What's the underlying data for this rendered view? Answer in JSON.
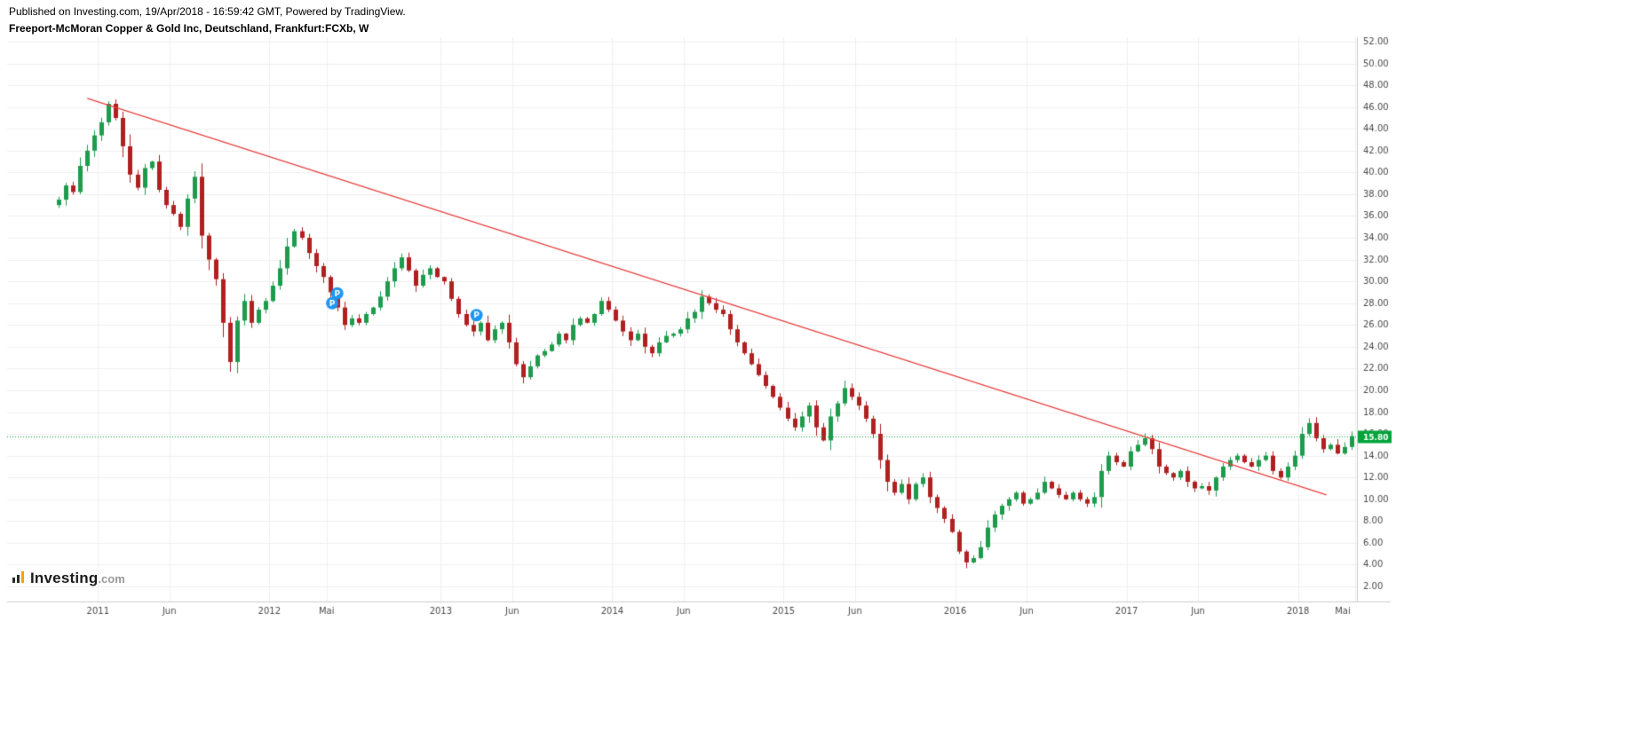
{
  "header": {
    "published_line": "Published on Investing.com, 19/Apr/2018 - 16:59:42 GMT, Powered by TradingView.",
    "instrument_line": "Freeport-McMoran Copper & Gold Inc, Deutschland, Frankfurt:FCXb, W"
  },
  "logo": {
    "name": "Investing",
    "suffix": ".com"
  },
  "chart_data": {
    "type": "candlestick",
    "title": "Freeport-McMoran Copper & Gold Inc, Deutschland, Frankfurt:FCXb, W",
    "timeframe": "W",
    "y_axis": {
      "min": 2,
      "max": 52,
      "step": 2
    },
    "x_ticks": [
      {
        "label": "2011",
        "index": 6
      },
      {
        "label": "Jun",
        "index": 16
      },
      {
        "label": "2012",
        "index": 30
      },
      {
        "label": "Mai",
        "index": 38
      },
      {
        "label": "2013",
        "index": 54
      },
      {
        "label": "Jun",
        "index": 64
      },
      {
        "label": "2014",
        "index": 78
      },
      {
        "label": "Jun",
        "index": 88
      },
      {
        "label": "2015",
        "index": 102
      },
      {
        "label": "Jun",
        "index": 112
      },
      {
        "label": "2016",
        "index": 126
      },
      {
        "label": "Jun",
        "index": 136
      },
      {
        "label": "2017",
        "index": 150
      },
      {
        "label": "Jun",
        "index": 160
      },
      {
        "label": "2018",
        "index": 174
      },
      {
        "label": "Mai",
        "index": 182
      }
    ],
    "first_open": 37.0,
    "closes": [
      37.5,
      38.8,
      38.2,
      40.6,
      42.0,
      43.4,
      44.6,
      46.3,
      45.0,
      42.4,
      39.8,
      38.6,
      40.4,
      41.0,
      38.4,
      37.0,
      36.2,
      35.0,
      37.6,
      39.6,
      34.2,
      32.0,
      30.2,
      26.2,
      22.6,
      26.4,
      28.2,
      26.2,
      27.4,
      28.2,
      29.6,
      31.2,
      33.2,
      34.6,
      34.0,
      32.6,
      31.4,
      30.4,
      29.0,
      27.6,
      26.0,
      26.6,
      26.2,
      27.0,
      27.6,
      28.6,
      30.0,
      31.2,
      32.2,
      31.0,
      29.6,
      30.6,
      31.2,
      30.4,
      30.0,
      28.4,
      27.0,
      26.0,
      25.4,
      26.2,
      24.6,
      25.6,
      26.2,
      24.4,
      22.4,
      21.2,
      22.2,
      23.2,
      23.6,
      24.2,
      25.2,
      24.6,
      26.0,
      26.6,
      26.2,
      27.0,
      28.2,
      27.4,
      26.4,
      25.4,
      24.6,
      25.2,
      24.0,
      23.4,
      24.4,
      25.0,
      25.2,
      25.6,
      26.6,
      27.2,
      28.6,
      28.0,
      27.4,
      27.0,
      25.6,
      24.4,
      23.4,
      22.4,
      21.4,
      20.4,
      19.4,
      18.4,
      17.4,
      16.6,
      17.6,
      18.6,
      16.6,
      15.4,
      17.6,
      18.8,
      20.2,
      19.4,
      18.6,
      17.4,
      16.0,
      13.6,
      11.6,
      10.6,
      11.4,
      10.0,
      11.4,
      12.0,
      10.2,
      9.2,
      8.2,
      7.0,
      5.2,
      4.2,
      4.6,
      5.6,
      7.4,
      8.6,
      9.4,
      10.0,
      10.6,
      9.6,
      10.0,
      10.6,
      11.6,
      11.0,
      10.4,
      10.0,
      10.6,
      10.0,
      9.6,
      10.2,
      12.6,
      14.0,
      13.4,
      13.0,
      14.4,
      15.0,
      15.6,
      14.6,
      13.0,
      12.4,
      12.0,
      12.6,
      11.6,
      11.0,
      11.2,
      10.8,
      12.0,
      13.0,
      13.6,
      14.0,
      13.4,
      13.0,
      13.6,
      14.0,
      12.6,
      12.0,
      13.0,
      14.0,
      16.0,
      17.0,
      15.6,
      14.6,
      15.0,
      14.2,
      14.8,
      15.8
    ],
    "last_price": {
      "value": 15.8,
      "label": "15.80",
      "color": "#00a43a"
    },
    "trendline": {
      "x1_index": 4.5,
      "price1": 46.8,
      "x2_index": 178,
      "price2": 10.4,
      "color": "#e84040"
    },
    "markers": [
      {
        "x_index": 39,
        "price": 28.9,
        "label": "P"
      },
      {
        "x_index": 38.3,
        "price": 28.0,
        "label": "P"
      },
      {
        "x_index": 58.5,
        "price": 26.9,
        "label": "P"
      }
    ],
    "colors": {
      "up": "#1e9b4d",
      "down": "#b02020",
      "grid": "#efefef",
      "axis_text": "#4a4a4a",
      "axis_line": "#cccccc",
      "marker": "#1e96f0"
    }
  }
}
